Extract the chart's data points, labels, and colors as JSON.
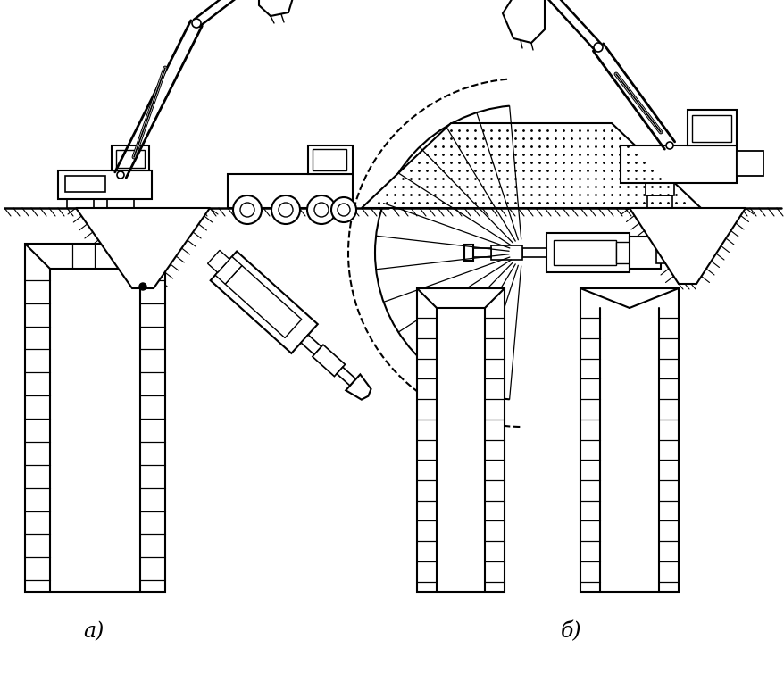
{
  "background_color": "#ffffff",
  "line_color": "#000000",
  "label_a": "а)",
  "label_b": "б)"
}
